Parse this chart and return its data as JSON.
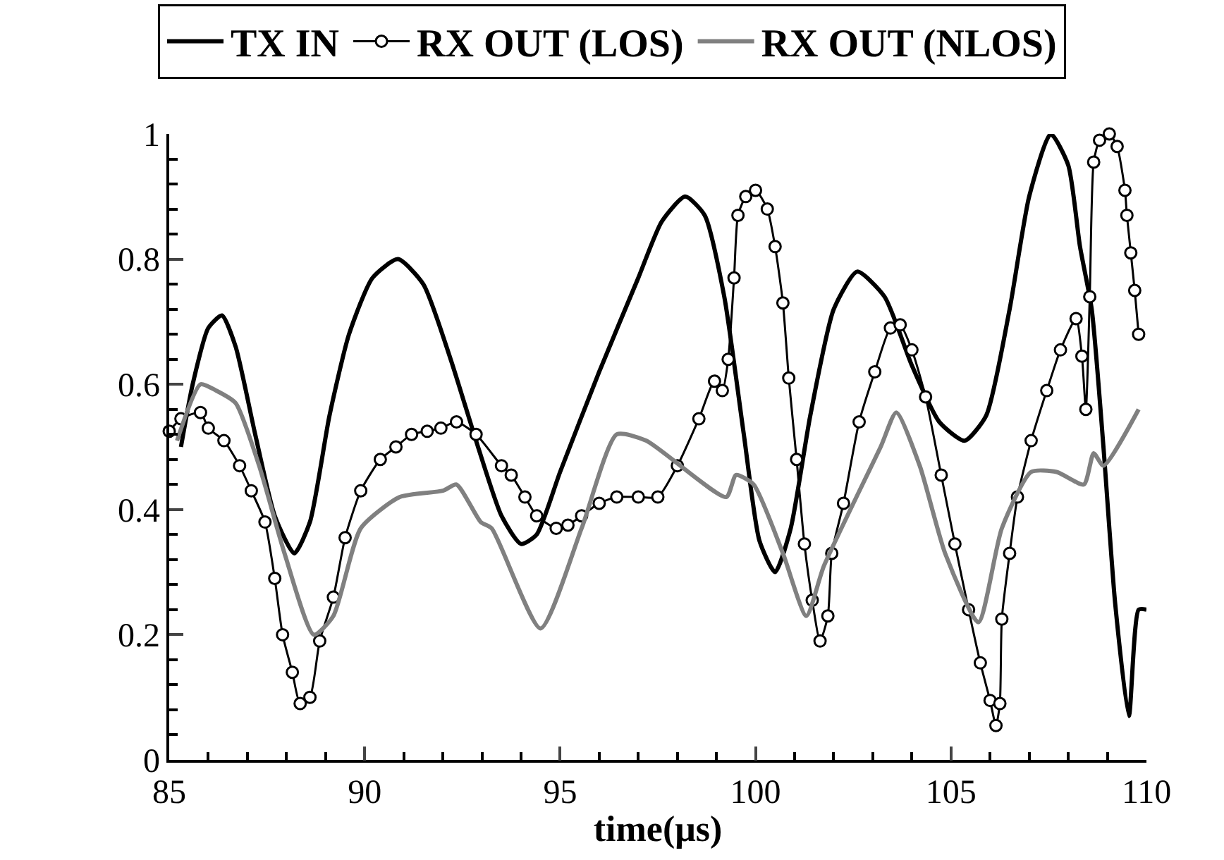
{
  "chart_data": {
    "type": "line",
    "xlabel": "time(μs)",
    "legend": "top",
    "grid": false,
    "line_style": "solid",
    "xlim": [
      85,
      110
    ],
    "ylim": [
      0,
      1
    ],
    "xticks": [
      85,
      {
        "value": 86,
        "label": null
      },
      {
        "value": 87,
        "label": null
      },
      {
        "value": 88,
        "label": null
      },
      {
        "value": 89,
        "label": null
      },
      90,
      {
        "value": 91,
        "label": null
      },
      {
        "value": 92,
        "label": null
      },
      {
        "value": 93,
        "label": null
      },
      {
        "value": 94,
        "label": null
      },
      95,
      {
        "value": 96,
        "label": null
      },
      {
        "value": 97,
        "label": null
      },
      {
        "value": 98,
        "label": null
      },
      {
        "value": 99,
        "label": null
      },
      100,
      {
        "value": 101,
        "label": null
      },
      {
        "value": 102,
        "label": null
      },
      {
        "value": 103,
        "label": null
      },
      {
        "value": 104,
        "label": null
      },
      105,
      {
        "value": 106,
        "label": null
      },
      {
        "value": 107,
        "label": null
      },
      {
        "value": 108,
        "label": null
      },
      {
        "value": 109,
        "label": null
      },
      110
    ],
    "yticks": [
      0,
      {
        "value": 0.04,
        "label": null
      },
      {
        "value": 0.08,
        "label": null
      },
      {
        "value": 0.12,
        "label": null
      },
      {
        "value": 0.16,
        "label": null
      },
      {
        "value": 0.2,
        "label": "0.2"
      },
      {
        "value": 0.24,
        "label": null
      },
      {
        "value": 0.28,
        "label": null
      },
      {
        "value": 0.32,
        "label": null
      },
      {
        "value": 0.36,
        "label": null
      },
      {
        "value": 0.4,
        "label": "0.4"
      },
      {
        "value": 0.44,
        "label": null
      },
      {
        "value": 0.48,
        "label": null
      },
      {
        "value": 0.52,
        "label": null
      },
      {
        "value": 0.56,
        "label": null
      },
      {
        "value": 0.6,
        "label": "0.6"
      },
      {
        "value": 0.64,
        "label": null
      },
      {
        "value": 0.68,
        "label": null
      },
      {
        "value": 0.72,
        "label": null
      },
      {
        "value": 0.76,
        "label": null
      },
      {
        "value": 0.8,
        "label": "0.8"
      },
      {
        "value": 0.84,
        "label": null
      },
      {
        "value": 0.88,
        "label": null
      },
      {
        "value": 0.92,
        "label": null
      },
      {
        "value": 0.96,
        "label": null
      },
      1
    ],
    "series": [
      {
        "name": "TX IN",
        "color": "#000000",
        "marker": "none",
        "x": [
          85.3,
          85.6,
          86.0,
          86.35,
          86.7,
          87.2,
          87.7,
          88.2,
          88.6,
          89.1,
          89.6,
          90.2,
          90.85,
          91.5,
          92.2,
          92.9,
          93.5,
          94.0,
          94.4,
          95.0,
          96.0,
          97.0,
          97.6,
          98.2,
          98.7,
          99.2,
          99.7,
          100.1,
          100.5,
          100.9,
          101.4,
          102.0,
          102.6,
          103.3,
          104.0,
          104.7,
          105.35,
          105.9,
          106.5,
          107.0,
          107.55,
          108.0,
          108.3,
          108.6,
          108.9,
          109.2,
          109.55,
          109.8,
          110.0
        ],
        "values": [
          0.5,
          0.6,
          0.69,
          0.71,
          0.66,
          0.52,
          0.39,
          0.33,
          0.38,
          0.55,
          0.68,
          0.77,
          0.8,
          0.76,
          0.64,
          0.5,
          0.39,
          0.345,
          0.36,
          0.46,
          0.62,
          0.77,
          0.86,
          0.9,
          0.87,
          0.74,
          0.52,
          0.35,
          0.3,
          0.37,
          0.55,
          0.72,
          0.78,
          0.74,
          0.63,
          0.54,
          0.51,
          0.55,
          0.72,
          0.9,
          1.0,
          0.95,
          0.82,
          0.72,
          0.5,
          0.25,
          0.07,
          0.24,
          0.24
        ]
      },
      {
        "name": "RX OUT (LOS)",
        "color": "#000000",
        "marker": "circle",
        "x": [
          85.0,
          85.3,
          85.8,
          86.0,
          86.4,
          86.8,
          87.1,
          87.45,
          87.7,
          87.9,
          88.15,
          88.35,
          88.6,
          88.85,
          89.2,
          89.5,
          89.9,
          90.4,
          90.8,
          91.2,
          91.6,
          91.95,
          92.35,
          92.85,
          93.5,
          93.75,
          94.1,
          94.4,
          94.9,
          95.2,
          95.55,
          96.0,
          96.45,
          97.0,
          97.5,
          98.0,
          98.55,
          98.95,
          99.15,
          99.3,
          99.45,
          99.55,
          99.75,
          100.0,
          100.3,
          100.5,
          100.7,
          100.85,
          101.05,
          101.25,
          101.45,
          101.65,
          101.85,
          101.95,
          102.25,
          102.65,
          103.05,
          103.45,
          103.7,
          104.0,
          104.35,
          104.75,
          105.1,
          105.45,
          105.75,
          106.0,
          106.15,
          106.25,
          106.3,
          106.5,
          106.7,
          107.05,
          107.45,
          107.8,
          108.2,
          108.35,
          108.45,
          108.55,
          108.65,
          108.8,
          109.05,
          109.25,
          109.45,
          109.5,
          109.6,
          109.7,
          109.8
        ],
        "values": [
          0.525,
          0.545,
          0.555,
          0.53,
          0.51,
          0.47,
          0.43,
          0.38,
          0.29,
          0.2,
          0.14,
          0.09,
          0.1,
          0.19,
          0.26,
          0.355,
          0.43,
          0.48,
          0.5,
          0.52,
          0.525,
          0.53,
          0.54,
          0.52,
          0.47,
          0.455,
          0.42,
          0.39,
          0.37,
          0.375,
          0.39,
          0.41,
          0.42,
          0.42,
          0.42,
          0.47,
          0.545,
          0.605,
          0.59,
          0.64,
          0.77,
          0.87,
          0.9,
          0.91,
          0.88,
          0.82,
          0.73,
          0.61,
          0.48,
          0.345,
          0.255,
          0.19,
          0.23,
          0.33,
          0.41,
          0.54,
          0.62,
          0.69,
          0.695,
          0.655,
          0.58,
          0.455,
          0.345,
          0.24,
          0.155,
          0.095,
          0.055,
          0.09,
          0.225,
          0.33,
          0.42,
          0.51,
          0.59,
          0.655,
          0.705,
          0.645,
          0.56,
          0.74,
          0.955,
          0.99,
          1.0,
          0.98,
          0.91,
          0.87,
          0.81,
          0.75,
          0.68
        ]
      },
      {
        "name": "RX OUT (NLOS)",
        "color": "#808080",
        "marker": "none",
        "x": [
          85.2,
          85.8,
          86.2,
          86.7,
          87.3,
          87.95,
          88.7,
          89.2,
          89.9,
          90.9,
          92.0,
          92.35,
          92.97,
          93.25,
          94.5,
          95.55,
          96.45,
          97.2,
          99.25,
          99.5,
          99.95,
          100.7,
          101.3,
          101.75,
          103.2,
          103.6,
          104.2,
          104.85,
          105.7,
          106.3,
          107.05,
          107.7,
          108.4,
          108.65,
          108.9,
          109.8
        ],
        "values": [
          0.51,
          0.6,
          0.59,
          0.57,
          0.47,
          0.33,
          0.2,
          0.23,
          0.37,
          0.42,
          0.43,
          0.44,
          0.38,
          0.37,
          0.21,
          0.37,
          0.52,
          0.51,
          0.42,
          0.455,
          0.44,
          0.33,
          0.23,
          0.31,
          0.5,
          0.555,
          0.47,
          0.33,
          0.22,
          0.37,
          0.46,
          0.46,
          0.44,
          0.49,
          0.47,
          0.56
        ]
      }
    ]
  }
}
